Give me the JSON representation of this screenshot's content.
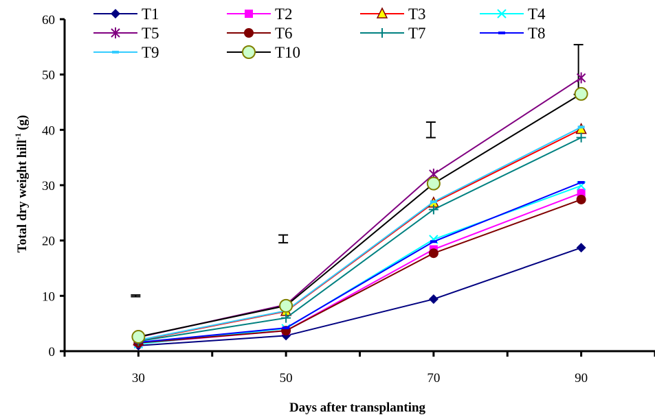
{
  "chart_data": {
    "type": "line",
    "title": "",
    "xlabel": "Days after transplanting",
    "ylabel": "Total dry weight hill",
    "ylabel_sup": "-1",
    "ylabel_unit": "(g)",
    "x": [
      30,
      50,
      70,
      90
    ],
    "x_tick_labels": [
      "30",
      "50",
      "70",
      "90"
    ],
    "xlim": [
      20,
      100
    ],
    "ylim": [
      0,
      60
    ],
    "y_ticks": [
      0,
      10,
      20,
      30,
      40,
      50,
      60
    ],
    "y_tick_labels": [
      "0",
      "10",
      "20",
      "30",
      "40",
      "50",
      "60"
    ],
    "grid": false,
    "legend_position": "top",
    "series": [
      {
        "name": "T1",
        "color": "#000080",
        "marker": "diamond",
        "values": [
          1.0,
          2.8,
          9.4,
          18.7
        ]
      },
      {
        "name": "T2",
        "color": "#FF00FF",
        "marker": "square",
        "values": [
          1.4,
          3.7,
          18.4,
          28.6
        ]
      },
      {
        "name": "T3",
        "color": "#FF0000",
        "marker": "triangle",
        "values": [
          1.9,
          7.2,
          26.8,
          40.1
        ]
      },
      {
        "name": "T4",
        "color": "#00FFFF",
        "marker": "x",
        "values": [
          1.3,
          4.1,
          20.2,
          29.9
        ]
      },
      {
        "name": "T5",
        "color": "#800080",
        "marker": "star",
        "values": [
          2.5,
          8.4,
          32.0,
          49.4
        ]
      },
      {
        "name": "T6",
        "color": "#800000",
        "marker": "circle",
        "values": [
          1.5,
          3.7,
          17.7,
          27.4
        ]
      },
      {
        "name": "T7",
        "color": "#008080",
        "marker": "plus",
        "values": [
          1.8,
          6.0,
          25.6,
          38.6
        ]
      },
      {
        "name": "T8",
        "color": "#0000FF",
        "marker": "dash",
        "values": [
          1.6,
          4.2,
          19.8,
          30.5
        ]
      },
      {
        "name": "T9",
        "color": "#33CCFF",
        "marker": "dash",
        "values": [
          2.0,
          7.3,
          27.0,
          40.5
        ]
      },
      {
        "name": "T10",
        "color": "#000000",
        "marker": "circle-open",
        "marker_fill": "#CCFFCC",
        "marker_stroke": "#808000",
        "values": [
          2.6,
          8.2,
          30.3,
          46.5
        ]
      }
    ],
    "error_bars": [
      {
        "x": 30,
        "y": 10.0,
        "half": 0.15
      },
      {
        "x": 50,
        "y": 20.3,
        "half": 0.7
      },
      {
        "x": 70,
        "y": 40.0,
        "half": 1.4
      },
      {
        "x": 90,
        "y": 50.9,
        "half": 4.5
      }
    ]
  }
}
